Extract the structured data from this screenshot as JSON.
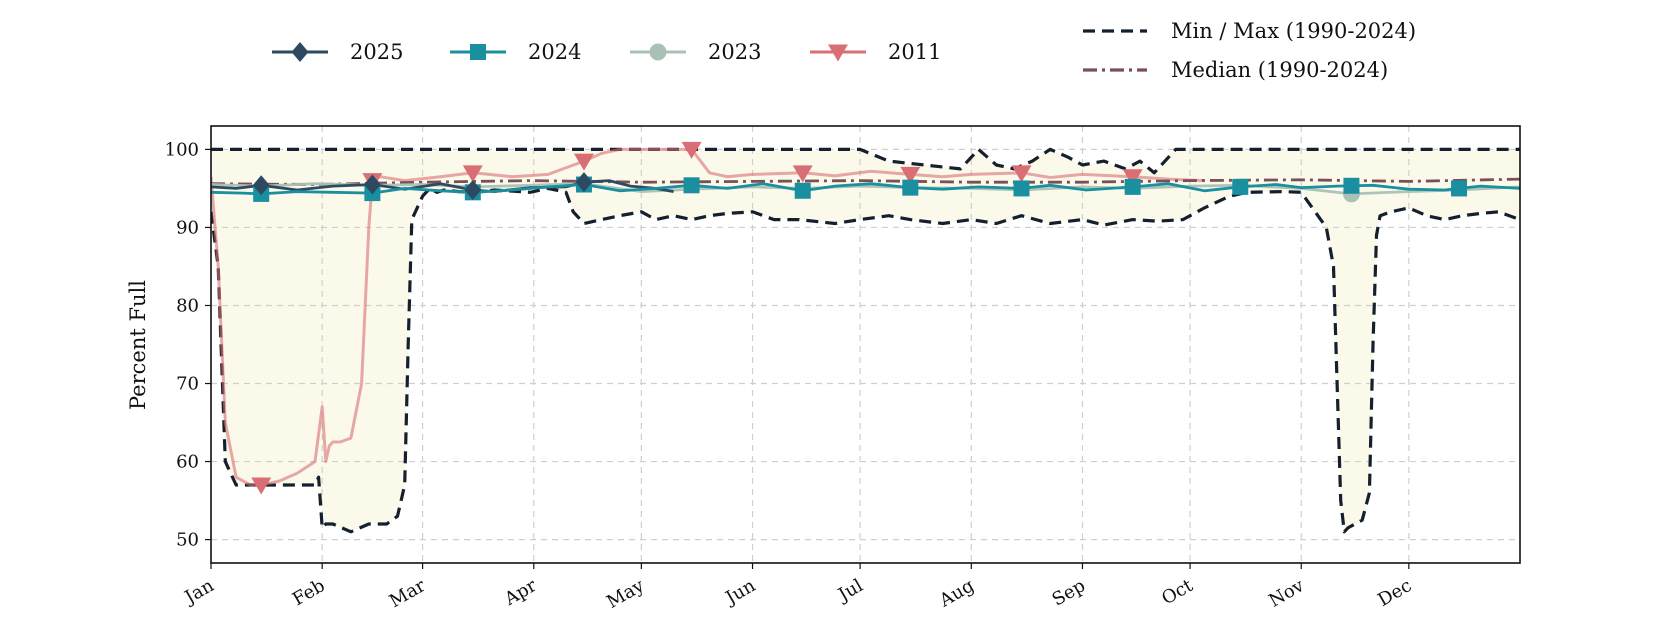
{
  "chart_data": {
    "type": "line",
    "title": "",
    "xlabel": "",
    "ylabel": "Percent Full",
    "ylim": [
      47,
      103
    ],
    "xlim": [
      1,
      366
    ],
    "grid": true,
    "legend_left": {
      "placement": "top-left",
      "entries": [
        "2025",
        "2024",
        "2023",
        "2011"
      ]
    },
    "legend_right": {
      "placement": "top-right",
      "entries": [
        "Min / Max (1990-2024)",
        "Median (1990-2024)"
      ]
    },
    "months": [
      {
        "label": "Jan",
        "day": 1
      },
      {
        "label": "Feb",
        "day": 32
      },
      {
        "label": "Mar",
        "day": 60
      },
      {
        "label": "Apr",
        "day": 91
      },
      {
        "label": "May",
        "day": 121
      },
      {
        "label": "Jun",
        "day": 152
      },
      {
        "label": "Jul",
        "day": 182
      },
      {
        "label": "Aug",
        "day": 213
      },
      {
        "label": "Sep",
        "day": 244
      },
      {
        "label": "Oct",
        "day": 274
      },
      {
        "label": "Nov",
        "day": 305
      },
      {
        "label": "Dec",
        "day": 335
      }
    ],
    "yticks": [
      50,
      60,
      70,
      80,
      90,
      100
    ],
    "series": [
      {
        "name": "2025",
        "color": "#2e4a62",
        "marker": "diamond",
        "style": "solid",
        "x": [
          1,
          8,
          15,
          25,
          35,
          46,
          55,
          65,
          74,
          80,
          90,
          100,
          105,
          112,
          118,
          125,
          130
        ],
        "y": [
          95.2,
          95.0,
          95.4,
          94.8,
          95.3,
          95.5,
          94.9,
          95.6,
          94.8,
          94.6,
          95.1,
          95.2,
          95.8,
          96.0,
          95.3,
          95.0,
          94.6
        ],
        "marker_x": [
          15,
          46,
          74,
          105
        ]
      },
      {
        "name": "2024",
        "color": "#1a8fa0",
        "marker": "square",
        "style": "solid",
        "x": [
          1,
          10,
          15,
          25,
          35,
          46,
          55,
          65,
          74,
          85,
          95,
          105,
          115,
          125,
          135,
          145,
          155,
          166,
          175,
          185,
          196,
          205,
          215,
          227,
          235,
          245,
          258,
          268,
          278,
          288,
          298,
          305,
          315,
          325,
          335,
          345,
          355,
          366
        ],
        "y": [
          94.5,
          94.4,
          94.3,
          94.6,
          94.5,
          94.4,
          95.0,
          94.7,
          94.5,
          94.8,
          95.2,
          95.5,
          94.7,
          95.0,
          95.4,
          95.0,
          95.6,
          94.7,
          95.3,
          95.6,
          95.1,
          94.9,
          95.2,
          95.0,
          95.4,
          94.8,
          95.2,
          95.6,
          94.7,
          95.2,
          95.5,
          95.1,
          95.3,
          95.4,
          94.9,
          94.8,
          95.3,
          95.0
        ],
        "marker_x": [
          15,
          46,
          74,
          105,
          135,
          166,
          196,
          227,
          258,
          288,
          319,
          349
        ]
      },
      {
        "name": "2023",
        "color": "#a9c2b5",
        "marker": "circle",
        "style": "solid",
        "x": [
          1,
          15,
          30,
          46,
          60,
          74,
          90,
          105,
          121,
          135,
          152,
          166,
          182,
          196,
          213,
          227,
          244,
          258,
          274,
          288,
          305,
          319,
          335,
          349,
          366
        ],
        "y": [
          95.5,
          95.3,
          95.6,
          95.4,
          95.5,
          95.2,
          95.4,
          95.6,
          94.6,
          94.9,
          95.2,
          95.0,
          95.3,
          95.1,
          95.0,
          94.8,
          95.2,
          95.0,
          95.3,
          95.4,
          95.0,
          94.3,
          94.6,
          94.8,
          95.2
        ],
        "marker_x": [
          319
        ]
      },
      {
        "name": "2011",
        "color": "#d96f75",
        "marker": "triangle-down",
        "style": "solid",
        "x": [
          1,
          3,
          5,
          8,
          12,
          15,
          20,
          25,
          30,
          32,
          33,
          34,
          35,
          37,
          40,
          43,
          45,
          46,
          48,
          55,
          65,
          74,
          85,
          95,
          105,
          110,
          115,
          120,
          125,
          135,
          140,
          145,
          152,
          166,
          175,
          185,
          196,
          205,
          213,
          227,
          235,
          244,
          258,
          268,
          278
        ],
        "y": [
          96.5,
          85.0,
          65.0,
          58.0,
          57.0,
          57.0,
          57.5,
          58.5,
          60.0,
          67.0,
          60.0,
          62.0,
          62.5,
          62.5,
          63.0,
          70.0,
          90.0,
          96.0,
          96.5,
          96.0,
          96.5,
          97.0,
          96.5,
          96.8,
          98.5,
          99.5,
          100.0,
          100.0,
          100.0,
          100.0,
          97.0,
          96.5,
          96.8,
          97.0,
          96.6,
          97.2,
          96.8,
          96.5,
          96.8,
          97.0,
          96.4,
          96.8,
          96.5,
          96.2,
          96.0
        ],
        "marker_x": [
          15,
          46,
          74,
          105,
          135,
          166,
          196,
          227,
          258
        ]
      },
      {
        "name": "Median (1990-2024)",
        "color": "#7a4f58",
        "marker": "none",
        "style": "dashdot",
        "x": [
          1,
          30,
          60,
          90,
          121,
          152,
          182,
          213,
          244,
          274,
          305,
          335,
          366
        ],
        "y": [
          95.6,
          95.5,
          95.8,
          96.0,
          95.8,
          95.9,
          96.0,
          95.8,
          95.8,
          96.0,
          96.1,
          95.9,
          96.2
        ]
      },
      {
        "name": "Max (1990-2024)",
        "color": "#15202e",
        "marker": "none",
        "style": "dashed",
        "role": "max",
        "x": [
          1,
          60,
          90,
          182,
          190,
          200,
          210,
          215,
          220,
          225,
          230,
          235,
          240,
          244,
          250,
          256,
          260,
          264,
          270,
          366
        ],
        "y": [
          100,
          100,
          100,
          100,
          98.5,
          98.0,
          97.5,
          100,
          98.0,
          97.5,
          98.5,
          100,
          99.0,
          98.0,
          98.5,
          97.5,
          98.5,
          97.0,
          100,
          100
        ]
      },
      {
        "name": "Min (1990-2024)",
        "color": "#15202e",
        "marker": "none",
        "style": "dashed",
        "role": "min",
        "x": [
          1,
          3,
          5,
          8,
          12,
          20,
          25,
          30,
          31,
          32,
          33,
          35,
          40,
          45,
          50,
          53,
          55,
          56,
          57,
          60,
          62,
          64,
          66,
          70,
          75,
          80,
          90,
          95,
          100,
          102,
          105,
          110,
          115,
          121,
          125,
          130,
          135,
          140,
          145,
          152,
          158,
          165,
          175,
          182,
          190,
          196,
          205,
          213,
          220,
          227,
          235,
          244,
          250,
          258,
          265,
          272,
          278,
          285,
          290,
          300,
          305,
          312,
          314,
          315,
          316,
          317,
          318,
          320,
          322,
          324,
          325,
          326,
          327,
          330,
          335,
          340,
          345,
          350,
          355,
          360,
          366
        ],
        "y": [
          92.0,
          85.0,
          60.0,
          57.0,
          57.0,
          57.0,
          57.0,
          57.0,
          58.0,
          51.5,
          52.0,
          52.0,
          51.0,
          52.0,
          52.0,
          53.0,
          57.0,
          75.0,
          91.0,
          94.0,
          95.0,
          94.5,
          94.8,
          94.6,
          94.5,
          94.8,
          94.5,
          95.0,
          94.5,
          92.0,
          90.5,
          91.0,
          91.5,
          92.0,
          91.0,
          91.5,
          91.0,
          91.5,
          91.8,
          92.0,
          91.0,
          91.0,
          90.5,
          91.0,
          91.5,
          91.0,
          90.5,
          91.0,
          90.5,
          91.5,
          90.5,
          91.0,
          90.3,
          91.0,
          90.8,
          91.0,
          92.5,
          94.0,
          94.5,
          94.6,
          94.5,
          90.0,
          85.0,
          70.0,
          55.0,
          51.0,
          51.5,
          52.0,
          52.5,
          56.0,
          75.0,
          89.0,
          91.5,
          92.0,
          92.5,
          91.5,
          91.0,
          91.5,
          91.8,
          92.0,
          91.0
        ]
      }
    ]
  }
}
